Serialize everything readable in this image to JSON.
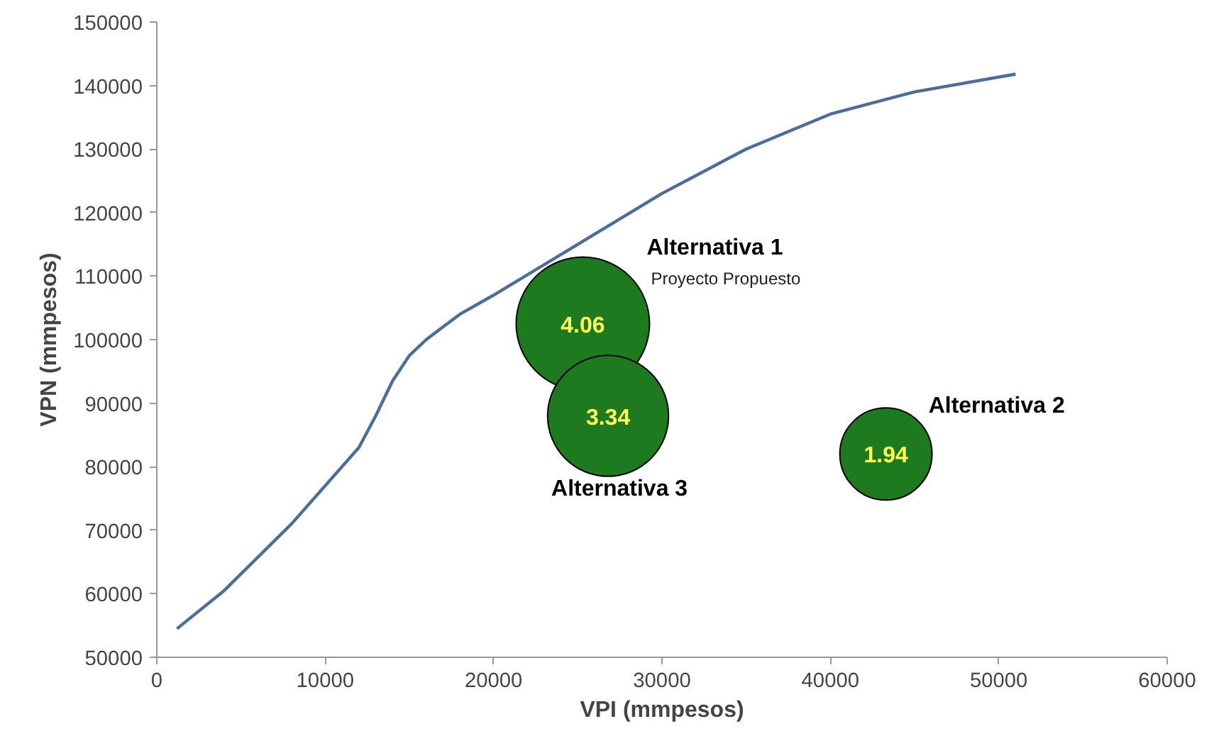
{
  "chart_data": {
    "type": "bubble",
    "xlabel": "VPI (mmpesos)",
    "ylabel": "VPN (mmpesos)",
    "xlim": [
      0,
      60000
    ],
    "ylim": [
      50000,
      150000
    ],
    "xticks": [
      0,
      10000,
      20000,
      30000,
      40000,
      50000,
      60000
    ],
    "yticks": [
      50000,
      60000,
      70000,
      80000,
      90000,
      100000,
      110000,
      120000,
      130000,
      140000,
      150000
    ],
    "grid": false,
    "series": [
      {
        "type": "line",
        "color": "#4a6d9a",
        "x": [
          1200,
          4000,
          8000,
          12000,
          13000,
          14000,
          15000,
          16000,
          17000,
          18000,
          20000,
          25000,
          30000,
          35000,
          40000,
          45000,
          51000
        ],
        "values": [
          54500,
          60500,
          71000,
          83000,
          88000,
          93500,
          97500,
          100000,
          102000,
          104000,
          107000,
          115000,
          123000,
          130000,
          135500,
          139000,
          141800
        ]
      },
      {
        "name": "Alternativa 1",
        "color": "#1e7a1e",
        "x": [
          25300
        ],
        "values": [
          102500
        ],
        "sizes": [
          4.06
        ],
        "value_labels": [
          "4.06"
        ]
      },
      {
        "name": "Alternativa 2",
        "color": "#1e7a1e",
        "x": [
          43300
        ],
        "values": [
          82000
        ],
        "sizes": [
          1.94
        ],
        "value_labels": [
          "1.94"
        ]
      },
      {
        "name": "Alternativa 3",
        "color": "#1e7a1e",
        "x": [
          26800
        ],
        "values": [
          88000
        ],
        "sizes": [
          3.34
        ],
        "value_labels": [
          "3.34"
        ]
      }
    ],
    "annotations": [
      "Proyecto Propuesto"
    ]
  }
}
